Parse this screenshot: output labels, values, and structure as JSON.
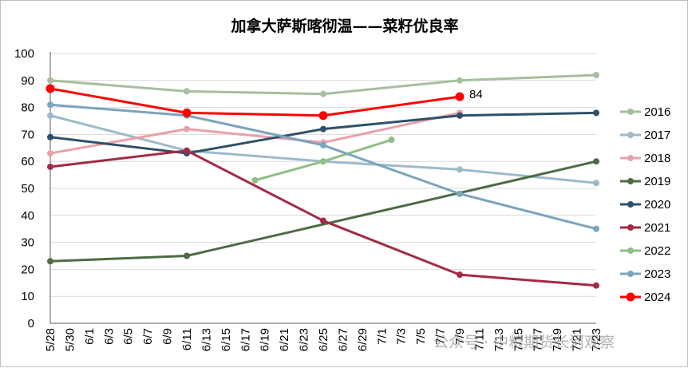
{
  "chart_data": {
    "type": "line",
    "title": "加拿大萨斯喀彻温——菜籽优良率",
    "xlabel": "",
    "ylabel": "",
    "ylim": [
      0,
      100
    ],
    "yticks": [
      0,
      10,
      20,
      30,
      40,
      50,
      60,
      70,
      80,
      90,
      100
    ],
    "categories": [
      "5/28",
      "5/30",
      "6/1",
      "6/3",
      "6/5",
      "6/7",
      "6/9",
      "6/11",
      "6/13",
      "6/15",
      "6/17",
      "6/19",
      "6/21",
      "6/23",
      "6/25",
      "6/27",
      "6/29",
      "7/1",
      "7/3",
      "7/5",
      "7/7",
      "7/9",
      "7/11",
      "7/13",
      "7/15",
      "7/17",
      "7/19",
      "7/21",
      "7/23"
    ],
    "grid": "horizontal",
    "legend_position": "right",
    "series": [
      {
        "name": "2016",
        "color": "#a6bf9f",
        "points": [
          [
            "5/28",
            90
          ],
          [
            "6/11",
            86
          ],
          [
            "6/25",
            85
          ],
          [
            "7/9",
            90
          ],
          [
            "7/23",
            92
          ]
        ]
      },
      {
        "name": "2017",
        "color": "#9dbacb",
        "points": [
          [
            "5/28",
            77
          ],
          [
            "6/11",
            64
          ],
          [
            "6/25",
            60
          ],
          [
            "7/9",
            57
          ],
          [
            "7/23",
            52
          ]
        ]
      },
      {
        "name": "2018",
        "color": "#e8a1aa",
        "points": [
          [
            "5/28",
            63
          ],
          [
            "6/11",
            72
          ],
          [
            "6/25",
            67
          ],
          [
            "7/9",
            78
          ]
        ]
      },
      {
        "name": "2019",
        "color": "#4e6b46",
        "points": [
          [
            "5/28",
            23
          ],
          [
            "6/11",
            25
          ],
          [
            "7/23",
            60
          ]
        ]
      },
      {
        "name": "2020",
        "color": "#2f5069",
        "points": [
          [
            "5/28",
            69
          ],
          [
            "6/11",
            63
          ],
          [
            "6/25",
            72
          ],
          [
            "7/9",
            77
          ],
          [
            "7/23",
            78
          ]
        ]
      },
      {
        "name": "2021",
        "color": "#a32b43",
        "points": [
          [
            "5/28",
            58
          ],
          [
            "6/11",
            64
          ],
          [
            "6/25",
            38
          ],
          [
            "7/9",
            18
          ],
          [
            "7/23",
            14
          ]
        ]
      },
      {
        "name": "2022",
        "color": "#8fbf83",
        "points": [
          [
            "6/18",
            53
          ],
          [
            "6/25",
            60
          ],
          [
            "7/2",
            68
          ]
        ]
      },
      {
        "name": "2023",
        "color": "#7ba4bd",
        "points": [
          [
            "5/28",
            81
          ],
          [
            "6/11",
            77
          ],
          [
            "6/25",
            66
          ],
          [
            "7/9",
            48
          ],
          [
            "7/23",
            35
          ]
        ]
      },
      {
        "name": "2024",
        "color": "#ff0000",
        "bold": true,
        "points": [
          [
            "5/28",
            87
          ],
          [
            "6/11",
            78
          ],
          [
            "6/25",
            77
          ],
          [
            "7/9",
            84
          ]
        ]
      }
    ],
    "annotations": [
      {
        "series": "2024",
        "x": "7/9",
        "text": "84"
      }
    ]
  },
  "watermark": "公众号 · 中粮期货长河观察"
}
